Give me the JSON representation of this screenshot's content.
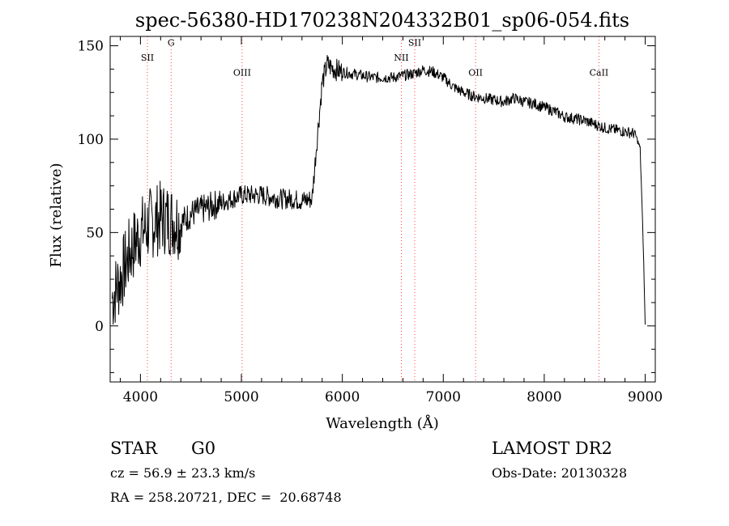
{
  "chart_data": {
    "type": "line",
    "title": "spec-56380-HD170238N204332B01_sp06-054.fits",
    "xlabel": "Wavelength (Å)",
    "ylabel": "Flux (relative)",
    "xlim": [
      3700,
      9100
    ],
    "ylim": [
      -30,
      155
    ],
    "x_ticks": [
      4000,
      5000,
      6000,
      7000,
      8000,
      9000
    ],
    "y_ticks": [
      0,
      50,
      100,
      150
    ],
    "grid": false,
    "legend": "none",
    "line_color": "#000000",
    "marker_color": "#ff4040",
    "spectral_lines": [
      {
        "label": "SII",
        "wavelength": 4069,
        "label_flux": 142
      },
      {
        "label": "G",
        "wavelength": 4304,
        "label_flux": 150
      },
      {
        "label": "OIII",
        "wavelength": 5007,
        "label_flux": 134
      },
      {
        "label": "NII",
        "wavelength": 6584,
        "label_flux": 142
      },
      {
        "label": "SII",
        "wavelength": 6717,
        "label_flux": 150
      },
      {
        "label": "OII",
        "wavelength": 7320,
        "label_flux": 134
      },
      {
        "label": "CaII",
        "wavelength": 8542,
        "label_flux": 134
      }
    ],
    "series": [
      {
        "x": [
          3720,
          3800,
          3900,
          4000,
          4100,
          4200,
          4300,
          4400,
          4500,
          4600,
          4700,
          4800,
          4900,
          5000,
          5100,
          5200,
          5300,
          5400,
          5500,
          5600,
          5700,
          5750,
          5800,
          5850,
          5900,
          6000,
          6100,
          6200,
          6300,
          6400,
          6500,
          6600,
          6700,
          6800,
          6900,
          7000,
          7100,
          7200,
          7300,
          7400,
          7500,
          7600,
          7700,
          7800,
          7900,
          8000,
          8100,
          8200,
          8300,
          8400,
          8500,
          8600,
          8700,
          8800,
          8900,
          8950,
          8980,
          9000
        ],
        "y": [
          15,
          25,
          40,
          50,
          55,
          58,
          57,
          55,
          60,
          62,
          64,
          66,
          68,
          70,
          70,
          70,
          69,
          68,
          68,
          67,
          68,
          100,
          130,
          140,
          138,
          136,
          135,
          134,
          133,
          133,
          133,
          134,
          135,
          137,
          136,
          133,
          128,
          125,
          123,
          122,
          121,
          120,
          122,
          120,
          119,
          117,
          115,
          112,
          111,
          110,
          108,
          106,
          105,
          104,
          103,
          95,
          45,
          0
        ]
      }
    ]
  },
  "info": {
    "class": "STAR",
    "subclass": "G0",
    "survey": "LAMOST DR2",
    "cz": "cz = 56.9 ± 23.3 km/s",
    "obs_date": "Obs-Date: 20130328",
    "coords": "RA = 258.20721, DEC =  20.68748"
  }
}
